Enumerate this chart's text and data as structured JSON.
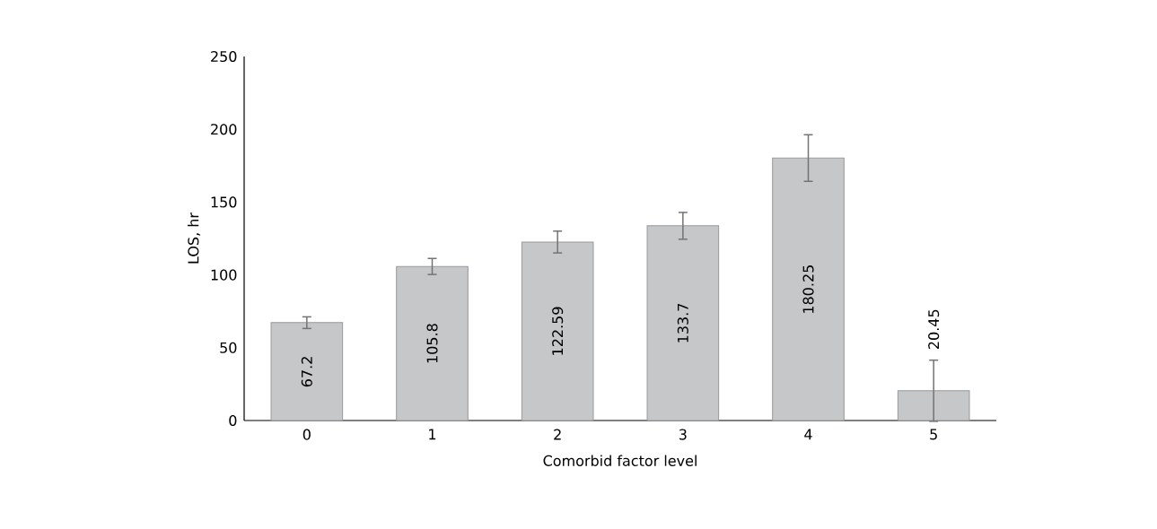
{
  "chart_data": {
    "type": "bar",
    "xlabel": "Comorbid factor level",
    "ylabel": "LOS, hr",
    "categories": [
      "0",
      "1",
      "2",
      "3",
      "4",
      "5"
    ],
    "values": [
      67.2,
      105.8,
      122.59,
      133.7,
      180.25,
      20.45
    ],
    "errors": [
      4,
      5.5,
      7.5,
      9.2,
      16,
      21
    ],
    "color": "#c6c7c9",
    "data_labels": true,
    "grid": false,
    "ylim": [
      0,
      250
    ],
    "yticks": [
      0,
      50,
      100,
      150,
      200,
      250
    ]
  }
}
